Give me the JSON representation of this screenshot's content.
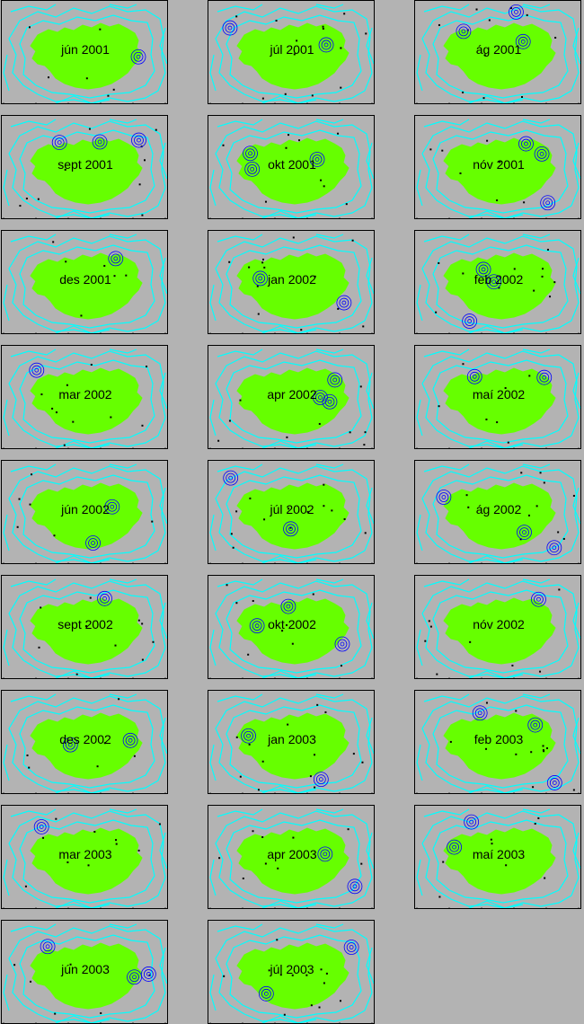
{
  "colors": {
    "background": "#b3b3b3",
    "land": "#66ff00",
    "contour": "#00ffff",
    "event_ring": "#0000ff",
    "event_dot": "#000000"
  },
  "panels": [
    {
      "label": "jún 2001"
    },
    {
      "label": "júl 2001"
    },
    {
      "label": "ág 2001"
    },
    {
      "label": "sept 2001"
    },
    {
      "label": "okt 2001"
    },
    {
      "label": "nóv 2001"
    },
    {
      "label": "des 2001"
    },
    {
      "label": "jan 2002"
    },
    {
      "label": "feb 2002"
    },
    {
      "label": "mar 2002"
    },
    {
      "label": "apr 2002"
    },
    {
      "label": "maí 2002"
    },
    {
      "label": "jún 2002"
    },
    {
      "label": "júl 2002"
    },
    {
      "label": "ág 2002"
    },
    {
      "label": "sept 2002"
    },
    {
      "label": "okt 2002"
    },
    {
      "label": "nóv 2002"
    },
    {
      "label": "des 2002"
    },
    {
      "label": "jan 2003"
    },
    {
      "label": "feb 2003"
    },
    {
      "label": "mar 2003"
    },
    {
      "label": "apr 2003"
    },
    {
      "label": "maí 2003"
    },
    {
      "label": "jún 2003"
    },
    {
      "label": "júl 2003"
    }
  ]
}
